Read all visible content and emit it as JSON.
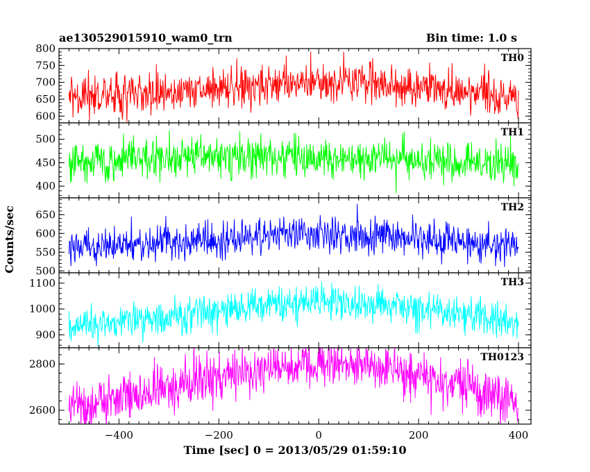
{
  "header": {
    "title": "ae130529015910_wam0_trn",
    "bin_time": "Bin time: 1.0 s"
  },
  "chart_data": {
    "type": "line",
    "title": "ae130529015910_wam0_trn",
    "subtitle": "Bin time: 1.0 s",
    "xlabel": "Time [sec] 0 = 2013/05/29 01:59:10",
    "ylabel": "Counts/sec",
    "xlim": [
      -520,
      425
    ],
    "x_ticks": [
      -400,
      -200,
      0,
      200,
      400
    ],
    "x_tick_labels": [
      "−400",
      "−200",
      "0",
      "200",
      "400"
    ],
    "x_range": [
      -500,
      400
    ],
    "bin_time": 1.0,
    "grid": false,
    "panels": [
      {
        "name": "TH0",
        "color": "#ff0000",
        "ylim": [
          580,
          800
        ],
        "y_ticks": [
          600,
          650,
          700,
          750,
          800
        ],
        "trend": [
          [
            -500,
            655
          ],
          [
            -300,
            672
          ],
          [
            -100,
            690
          ],
          [
            0,
            702
          ],
          [
            100,
            695
          ],
          [
            300,
            675
          ],
          [
            400,
            650
          ]
        ],
        "noise_sd": 30
      },
      {
        "name": "TH1",
        "color": "#00ff00",
        "ylim": [
          375,
          535
        ],
        "y_ticks": [
          400,
          450,
          500
        ],
        "trend": [
          [
            -500,
            455
          ],
          [
            -300,
            463
          ],
          [
            -100,
            462
          ],
          [
            0,
            460
          ],
          [
            100,
            457
          ],
          [
            300,
            452
          ],
          [
            400,
            448
          ]
        ],
        "noise_sd": 21
      },
      {
        "name": "TH2",
        "color": "#0000ff",
        "ylim": [
          495,
          695
        ],
        "y_ticks": [
          500,
          550,
          600,
          650
        ],
        "trend": [
          [
            -500,
            560
          ],
          [
            -300,
            575
          ],
          [
            -100,
            595
          ],
          [
            0,
            603
          ],
          [
            100,
            596
          ],
          [
            300,
            575
          ],
          [
            400,
            560
          ]
        ],
        "noise_sd": 24
      },
      {
        "name": "TH3",
        "color": "#00ffff",
        "ylim": [
          850,
          1140
        ],
        "y_ticks": [
          900,
          1000,
          1100
        ],
        "trend": [
          [
            -500,
            925
          ],
          [
            -300,
            970
          ],
          [
            -100,
            1015
          ],
          [
            0,
            1030
          ],
          [
            100,
            1025
          ],
          [
            300,
            985
          ],
          [
            400,
            935
          ]
        ],
        "noise_sd": 34
      },
      {
        "name": "TH0123",
        "color": "#ff00ff",
        "ylim": [
          2540,
          2870
        ],
        "y_ticks": [
          2600,
          2800
        ],
        "trend": [
          [
            -500,
            2615
          ],
          [
            -300,
            2700
          ],
          [
            -100,
            2780
          ],
          [
            0,
            2800
          ],
          [
            100,
            2790
          ],
          [
            300,
            2705
          ],
          [
            400,
            2620
          ]
        ],
        "noise_sd": 52
      }
    ]
  }
}
